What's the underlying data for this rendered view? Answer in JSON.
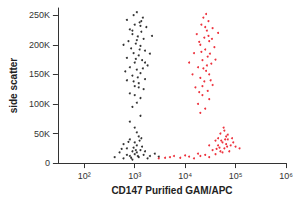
{
  "chart_data": {
    "type": "scatter",
    "x_label": "CD147 Purified GAM/APC",
    "y_label": "side scatter",
    "log": "x",
    "grid": false,
    "marker": "circle",
    "xlim": [
      30,
      1000000
    ],
    "xticks": [
      {
        "value": 100,
        "label": "10²"
      },
      {
        "value": 1000,
        "label": "10³"
      },
      {
        "value": 10000,
        "label": "10⁴"
      },
      {
        "value": 100000,
        "label": "10⁵"
      },
      {
        "value": 1000000,
        "label": "10⁶"
      }
    ],
    "ylim": [
      0,
      262144
    ],
    "yticks": [
      0,
      {
        "value": 50000,
        "label": "50K"
      },
      {
        "value": 100000,
        "label": "100K"
      },
      {
        "value": 150000,
        "label": "150K"
      },
      {
        "value": 200000,
        "label": "200K"
      },
      {
        "value": 250000,
        "label": "250K"
      }
    ],
    "series": [
      {
        "color": "#000000",
        "values": [
          [
            900,
            95000
          ],
          [
            1100,
            102000
          ],
          [
            1300,
            110000
          ],
          [
            800,
            118000
          ],
          [
            1500,
            125000
          ],
          [
            1000,
            130000
          ],
          [
            1200,
            135000
          ],
          [
            700,
            140000
          ],
          [
            1600,
            142000
          ],
          [
            900,
            148000
          ],
          [
            1300,
            152000
          ],
          [
            1100,
            158000
          ],
          [
            800,
            162000
          ],
          [
            1800,
            165000
          ],
          [
            1000,
            170000
          ],
          [
            1400,
            174000
          ],
          [
            700,
            178000
          ],
          [
            1200,
            182000
          ],
          [
            950,
            186000
          ],
          [
            1600,
            190000
          ],
          [
            850,
            194000
          ],
          [
            1300,
            198000
          ],
          [
            1050,
            202000
          ],
          [
            750,
            206000
          ],
          [
            1500,
            210000
          ],
          [
            1150,
            214000
          ],
          [
            900,
            218000
          ],
          [
            1350,
            222000
          ],
          [
            800,
            226000
          ],
          [
            1700,
            230000
          ],
          [
            1000,
            234000
          ],
          [
            1250,
            238000
          ],
          [
            700,
            242000
          ],
          [
            1450,
            246000
          ],
          [
            950,
            250000
          ],
          [
            1100,
            255000
          ],
          [
            1200,
            128000
          ],
          [
            950,
            138000
          ],
          [
            1450,
            160000
          ],
          [
            1050,
            176000
          ],
          [
            1250,
            192000
          ],
          [
            1100,
            208000
          ],
          [
            900,
            224000
          ],
          [
            1350,
            240000
          ],
          [
            1150,
            145000
          ],
          [
            650,
            155000
          ],
          [
            2000,
            185000
          ],
          [
            600,
            200000
          ],
          [
            2200,
            215000
          ],
          [
            1600,
            170000
          ],
          [
            1000,
            115000
          ],
          [
            1300,
            232000
          ],
          [
            600,
            8000
          ],
          [
            800,
            12000
          ],
          [
            1000,
            15000
          ],
          [
            1200,
            10000
          ],
          [
            900,
            20000
          ],
          [
            700,
            25000
          ],
          [
            1100,
            30000
          ],
          [
            1300,
            22000
          ],
          [
            500,
            18000
          ],
          [
            1500,
            14000
          ],
          [
            1000,
            35000
          ],
          [
            800,
            40000
          ],
          [
            1200,
            45000
          ],
          [
            900,
            6000
          ],
          [
            1400,
            28000
          ],
          [
            600,
            32000
          ],
          [
            2000,
            12000
          ],
          [
            2500,
            16000
          ],
          [
            400,
            10000
          ],
          [
            1100,
            18000
          ],
          [
            950,
            26000
          ],
          [
            1250,
            38000
          ],
          [
            850,
            9000
          ],
          [
            700,
            14000
          ],
          [
            1050,
            22000
          ],
          [
            1600,
            20000
          ],
          [
            750,
            36000
          ],
          [
            1350,
            42000
          ],
          [
            1800,
            8000
          ],
          [
            3000,
            11000
          ],
          [
            550,
            24000
          ],
          [
            1150,
            12000
          ],
          [
            1000,
            60000
          ],
          [
            800,
            70000
          ],
          [
            1300,
            80000
          ],
          [
            1100,
            52000
          ]
        ]
      },
      {
        "color": "#e8000f",
        "values": [
          [
            20000,
            85000
          ],
          [
            25000,
            92000
          ],
          [
            18000,
            100000
          ],
          [
            30000,
            108000
          ],
          [
            22000,
            115000
          ],
          [
            28000,
            122000
          ],
          [
            16000,
            128000
          ],
          [
            35000,
            132000
          ],
          [
            24000,
            138000
          ],
          [
            20000,
            144000
          ],
          [
            30000,
            150000
          ],
          [
            26000,
            156000
          ],
          [
            18000,
            162000
          ],
          [
            33000,
            168000
          ],
          [
            22000,
            174000
          ],
          [
            28000,
            180000
          ],
          [
            15000,
            186000
          ],
          [
            25000,
            192000
          ],
          [
            38000,
            196000
          ],
          [
            20000,
            200000
          ],
          [
            30000,
            206000
          ],
          [
            24000,
            212000
          ],
          [
            17000,
            218000
          ],
          [
            27000,
            224000
          ],
          [
            35000,
            228000
          ],
          [
            21000,
            234000
          ],
          [
            29000,
            240000
          ],
          [
            23000,
            246000
          ],
          [
            26000,
            252000
          ],
          [
            19000,
            120000
          ],
          [
            32000,
            140000
          ],
          [
            27000,
            165000
          ],
          [
            21000,
            188000
          ],
          [
            34000,
            210000
          ],
          [
            25000,
            230000
          ],
          [
            14000,
            150000
          ],
          [
            40000,
            175000
          ],
          [
            23000,
            160000
          ],
          [
            31000,
            185000
          ],
          [
            19000,
            205000
          ],
          [
            29000,
            215000
          ],
          [
            45000,
            220000
          ],
          [
            12000,
            170000
          ],
          [
            22000,
            130000
          ],
          [
            3000,
            8000
          ],
          [
            5000,
            10000
          ],
          [
            8000,
            9000
          ],
          [
            12000,
            11000
          ],
          [
            15000,
            8000
          ],
          [
            20000,
            12000
          ],
          [
            25000,
            14000
          ],
          [
            30000,
            10000
          ],
          [
            40000,
            15000
          ],
          [
            50000,
            20000
          ],
          [
            60000,
            25000
          ],
          [
            45000,
            30000
          ],
          [
            55000,
            35000
          ],
          [
            70000,
            40000
          ],
          [
            65000,
            45000
          ],
          [
            50000,
            50000
          ],
          [
            80000,
            30000
          ],
          [
            90000,
            35000
          ],
          [
            60000,
            55000
          ],
          [
            40000,
            38000
          ],
          [
            35000,
            22000
          ],
          [
            75000,
            20000
          ],
          [
            100000,
            28000
          ],
          [
            45000,
            42000
          ],
          [
            55000,
            18000
          ],
          [
            65000,
            32000
          ],
          [
            70000,
            48000
          ],
          [
            48000,
            26000
          ],
          [
            85000,
            42000
          ],
          [
            52000,
            38000
          ],
          [
            120000,
            25000
          ],
          [
            30000,
            30000
          ],
          [
            18000,
            16000
          ],
          [
            10000,
            13000
          ],
          [
            6000,
            12000
          ],
          [
            4000,
            9000
          ],
          [
            58000,
            60000
          ],
          [
            62000,
            40000
          ],
          [
            42000,
            24000
          ],
          [
            68000,
            28000
          ]
        ]
      }
    ]
  }
}
